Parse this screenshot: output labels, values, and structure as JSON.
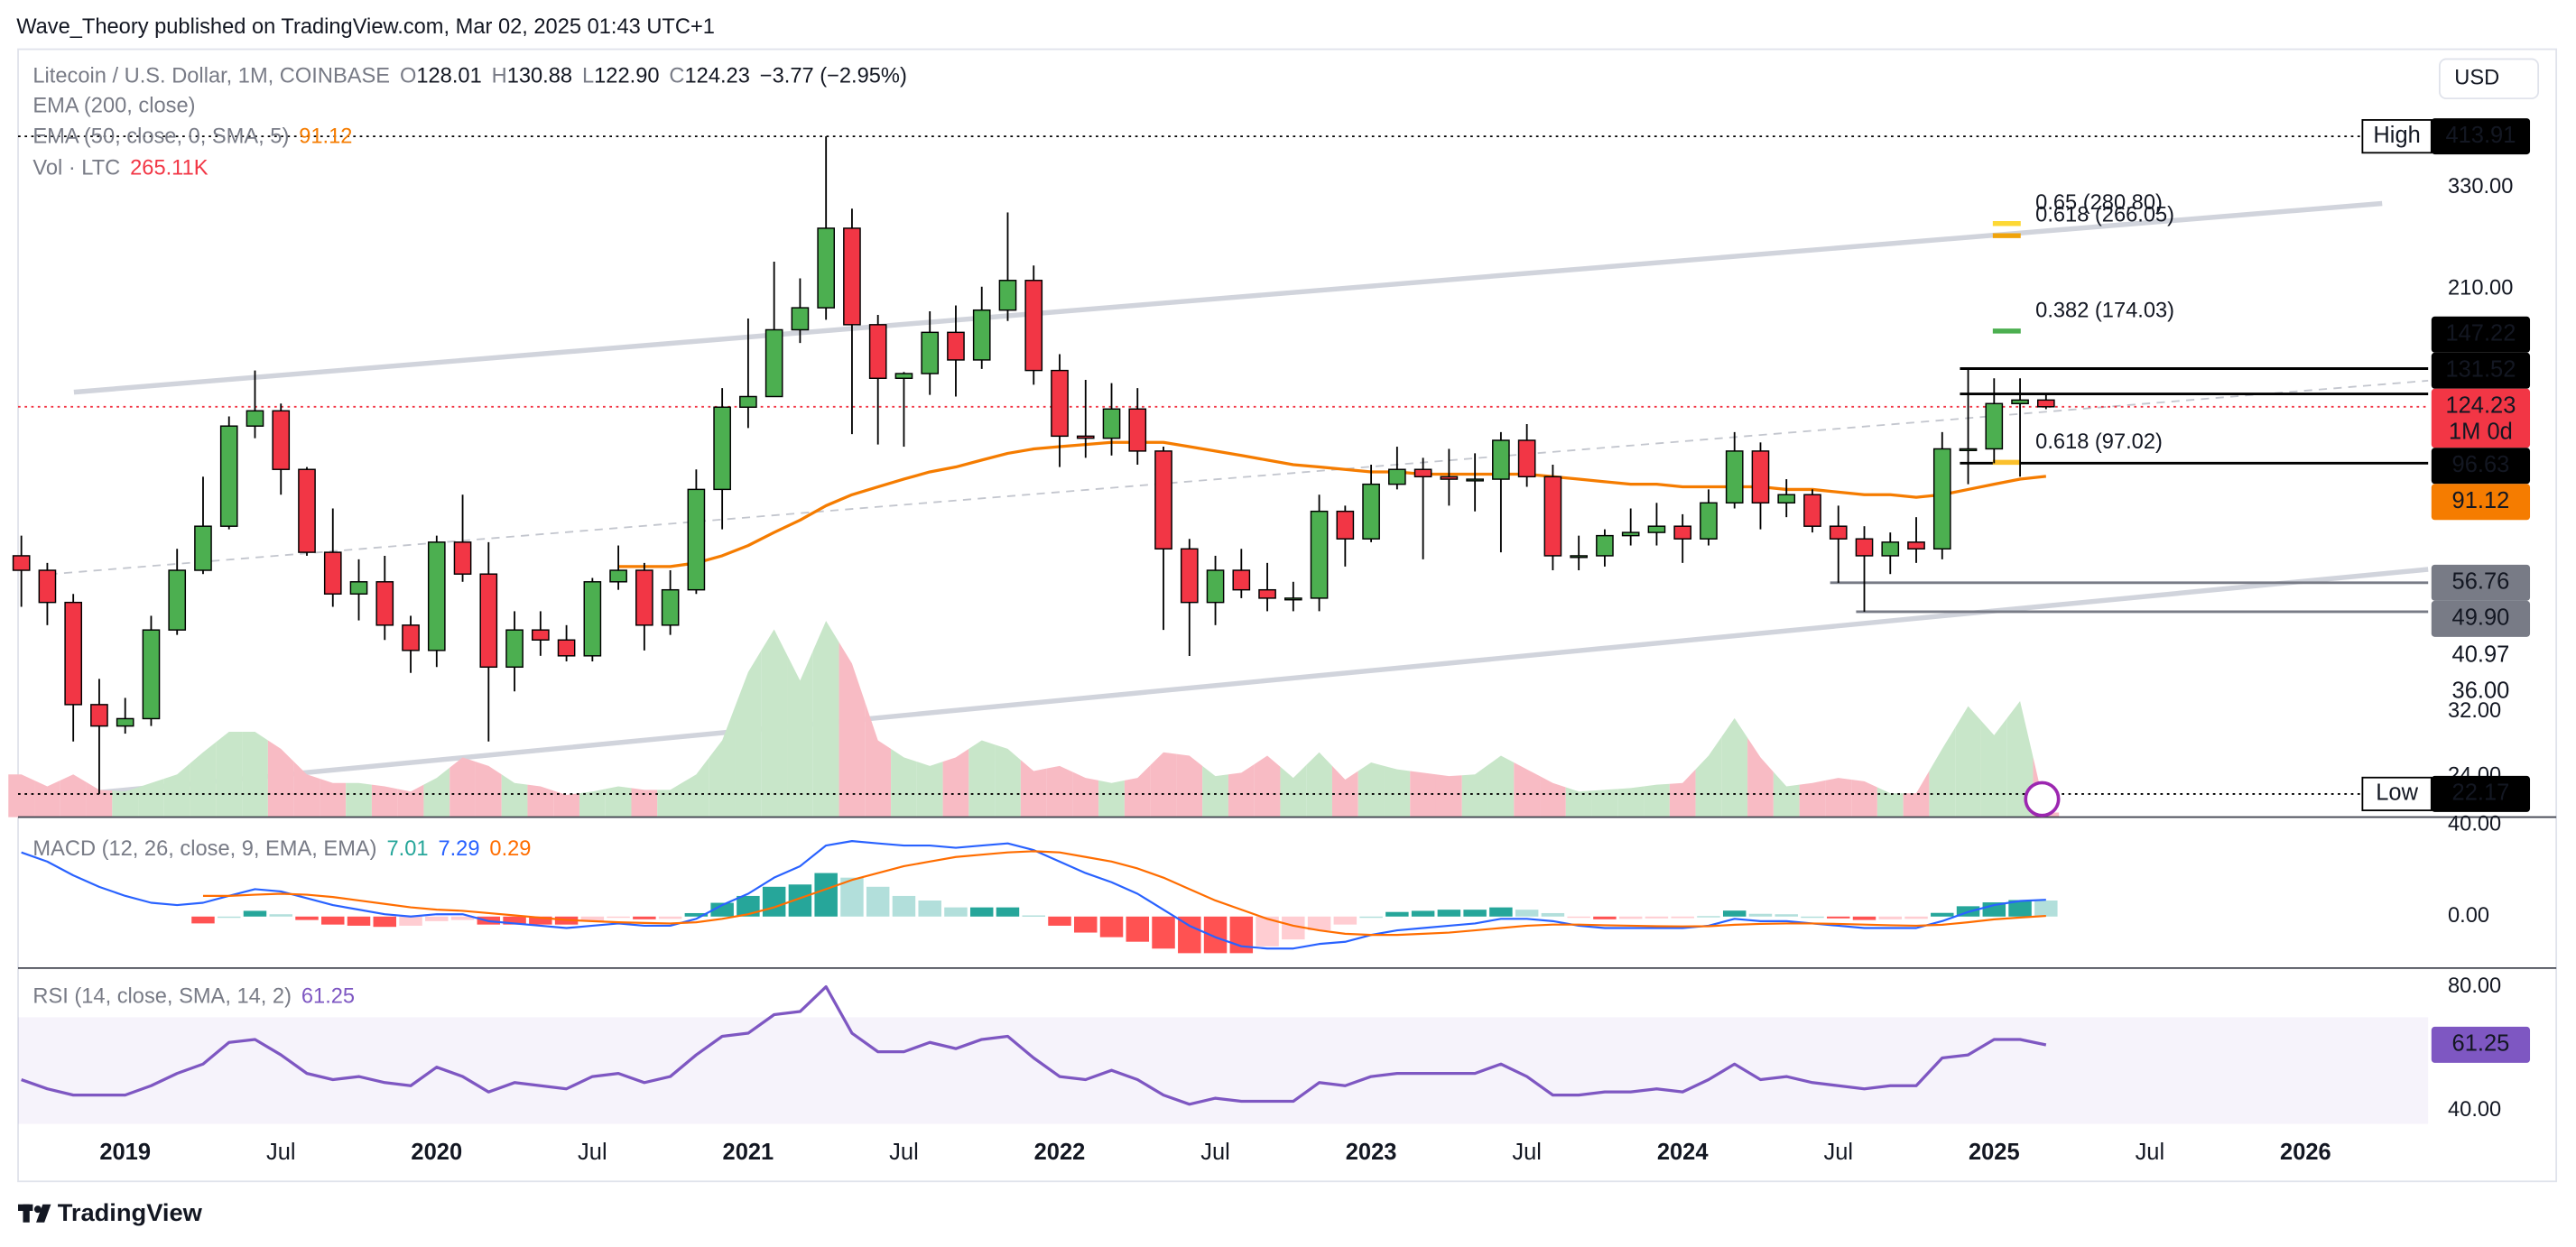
{
  "header": {
    "published": "Wave_Theory published on TradingView.com, Mar 02, 2025 01:43 UTC+1",
    "currency": "USD",
    "logo": "TradingView"
  },
  "chart_data": {
    "type": "candlestick",
    "title": "Litecoin / U.S. Dollar, 1M, COINBASE",
    "ohlc_legend": [
      {
        "key": "O",
        "value": "128.01"
      },
      {
        "key": "H",
        "value": "130.88"
      },
      {
        "key": "L",
        "value": "122.90"
      },
      {
        "key": "C",
        "value": "124.23"
      }
    ],
    "change": "−3.77 (−2.95%)",
    "indicators": [
      {
        "name": "EMA (200, close)"
      },
      {
        "name": "EMA (50, close, 0, SMA, 5)",
        "value": "91.12",
        "color": "#f57c00"
      },
      {
        "name": "Vol · LTC",
        "value": "265.11K",
        "color": "#f23645"
      }
    ],
    "up_color": "#4caf50",
    "down_color": "#f23645",
    "log": true,
    "ylim": [
      20,
      610
    ],
    "yticks": [
      {
        "value": 330,
        "label": "330.00"
      },
      {
        "value": 210,
        "label": "210.00"
      },
      {
        "value": 32,
        "label": "32.00"
      },
      {
        "value": 24,
        "label": "24.00"
      }
    ],
    "xticks": [
      {
        "value": "2019-01",
        "label": "2019"
      },
      {
        "value": "2019-07",
        "label": "Jul"
      },
      {
        "value": "2020-01",
        "label": "2020"
      },
      {
        "value": "2020-07",
        "label": "Jul"
      },
      {
        "value": "2021-01",
        "label": "2021"
      },
      {
        "value": "2021-07",
        "label": "Jul"
      },
      {
        "value": "2022-01",
        "label": "2022"
      },
      {
        "value": "2022-07",
        "label": "Jul"
      },
      {
        "value": "2023-01",
        "label": "2023"
      },
      {
        "value": "2023-07",
        "label": "Jul"
      },
      {
        "value": "2024-01",
        "label": "2024"
      },
      {
        "value": "2024-07",
        "label": "Jul"
      },
      {
        "value": "2025-01",
        "label": "2025"
      },
      {
        "value": "2025-07",
        "label": "Jul"
      },
      {
        "value": "2026-01",
        "label": "2026"
      }
    ],
    "x": [
      "2018-09",
      "2018-10",
      "2018-11",
      "2018-12",
      "2019-01",
      "2019-02",
      "2019-03",
      "2019-04",
      "2019-05",
      "2019-06",
      "2019-07",
      "2019-08",
      "2019-09",
      "2019-10",
      "2019-11",
      "2019-12",
      "2020-01",
      "2020-02",
      "2020-03",
      "2020-04",
      "2020-05",
      "2020-06",
      "2020-07",
      "2020-08",
      "2020-09",
      "2020-10",
      "2020-11",
      "2020-12",
      "2021-01",
      "2021-02",
      "2021-03",
      "2021-04",
      "2021-05",
      "2021-06",
      "2021-07",
      "2021-08",
      "2021-09",
      "2021-10",
      "2021-11",
      "2021-12",
      "2022-01",
      "2022-02",
      "2022-03",
      "2022-04",
      "2022-05",
      "2022-06",
      "2022-07",
      "2022-08",
      "2022-09",
      "2022-10",
      "2022-11",
      "2022-12",
      "2023-01",
      "2023-02",
      "2023-03",
      "2023-04",
      "2023-05",
      "2023-06",
      "2023-07",
      "2023-08",
      "2023-09",
      "2023-10",
      "2023-11",
      "2023-12",
      "2024-01",
      "2024-02",
      "2024-03",
      "2024-04",
      "2024-05",
      "2024-06",
      "2024-07",
      "2024-08",
      "2024-09",
      "2024-10",
      "2024-11",
      "2024-12",
      "2025-01",
      "2025-02",
      "2025-03"
    ],
    "open": [
      64,
      60,
      52,
      33,
      30,
      31,
      46,
      60,
      73,
      114,
      122,
      94,
      65,
      54,
      57,
      47,
      42,
      68,
      59,
      39,
      46,
      44,
      41,
      57,
      60,
      47,
      55,
      86,
      124,
      130,
      175,
      193,
      275,
      179,
      141,
      144,
      173,
      153,
      191,
      218,
      146,
      109,
      108,
      123,
      102,
      66,
      52,
      60,
      55,
      53,
      53,
      78,
      69,
      88,
      94,
      91,
      90,
      90,
      107,
      91,
      64,
      64,
      70,
      71,
      73,
      69,
      81,
      102,
      81,
      84,
      73,
      69,
      64,
      68,
      66,
      103,
      103,
      126,
      128.01
    ],
    "high": [
      70,
      62,
      54,
      37,
      34,
      49,
      66,
      91,
      119,
      146,
      126,
      95,
      79,
      63,
      64,
      49,
      70,
      84,
      68,
      50,
      50,
      47,
      58,
      67,
      62,
      60,
      94,
      135,
      184,
      237,
      220,
      413.91,
      300,
      187,
      145,
      190,
      195,
      212,
      295,
      233,
      157,
      140,
      138,
      135,
      104,
      69,
      64,
      66,
      62,
      57,
      84,
      80,
      96,
      104,
      99,
      103,
      101,
      111,
      115,
      96,
      70,
      72,
      79,
      81,
      77,
      86,
      111,
      106,
      90,
      86,
      80,
      73,
      71,
      76,
      111,
      147.22,
      141,
      141,
      130.88
    ],
    "low": [
      51,
      47,
      28,
      22.17,
      29,
      30,
      45,
      59,
      72,
      108,
      84,
      64,
      51,
      48,
      44,
      38,
      39,
      57,
      28,
      35,
      41,
      40,
      40,
      55,
      42,
      45,
      54,
      72,
      113,
      130,
      165,
      183,
      110,
      105,
      104,
      131,
      130,
      147,
      182,
      137,
      95,
      99,
      100,
      96,
      46,
      40.97,
      47,
      53,
      50,
      50,
      50,
      61,
      68,
      86,
      63,
      80,
      78,
      65,
      87,
      60,
      60,
      61,
      67,
      67,
      62,
      67,
      79,
      72,
      76,
      71,
      56.76,
      49.9,
      59,
      62,
      63,
      88,
      96.63,
      91,
      122.9
    ],
    "close": [
      60,
      52,
      33,
      30,
      31,
      46,
      60,
      73,
      114,
      122,
      94,
      65,
      54,
      57,
      47,
      42,
      68,
      59,
      39,
      46,
      44,
      41,
      57,
      60,
      47,
      55,
      86,
      124,
      130,
      175,
      193,
      275,
      179,
      141,
      144,
      173,
      153,
      191,
      218,
      146,
      109,
      108,
      123,
      102,
      66,
      52,
      60,
      55,
      53,
      53,
      78,
      69,
      88,
      94,
      91,
      90,
      90,
      107,
      91,
      64,
      64,
      70,
      71,
      73,
      69,
      81,
      102,
      81,
      84,
      73,
      69,
      64,
      68,
      66,
      103,
      103,
      126,
      128.01,
      124.23
    ],
    "ema50": {
      "color": "#f57c00",
      "values": [
        null,
        null,
        null,
        null,
        null,
        null,
        null,
        null,
        null,
        null,
        null,
        null,
        null,
        null,
        null,
        null,
        null,
        null,
        null,
        null,
        null,
        null,
        null,
        61,
        61,
        61,
        62,
        64,
        67,
        71,
        75,
        80,
        84,
        87,
        90,
        93,
        95,
        98,
        101,
        103,
        104,
        105,
        106,
        106,
        106,
        104,
        102,
        100,
        98,
        96,
        95,
        94,
        93,
        93,
        92,
        92,
        92,
        92,
        92,
        91,
        90,
        89,
        88,
        88,
        87,
        87,
        87,
        87,
        86,
        86,
        85,
        84,
        84,
        83,
        84,
        86,
        88,
        90,
        91.12
      ]
    },
    "volume": {
      "ylim": [
        0,
        45000000
      ],
      "values": [
        2500000,
        1800000,
        2500000,
        1600000,
        1500000,
        2000000,
        2500000,
        3800000,
        5000000,
        5000000,
        4000000,
        2500000,
        2000000,
        2000000,
        1800000,
        1500000,
        2300000,
        3500000,
        3000000,
        2000000,
        1800000,
        1300000,
        1500000,
        1800000,
        1600000,
        1600000,
        2500000,
        4500000,
        8500000,
        11000000,
        8000000,
        11500000,
        9000000,
        4500000,
        3500000,
        3000000,
        3500000,
        4500000,
        4000000,
        2700000,
        3000000,
        2300000,
        2000000,
        2300000,
        3800000,
        3600000,
        2400000,
        2600000,
        3600000,
        2300000,
        3800000,
        2200000,
        3200000,
        2800000,
        2600000,
        2400000,
        2500000,
        3600000,
        2800000,
        2000000,
        1500000,
        1600000,
        1700000,
        1900000,
        2000000,
        3600000,
        5800000,
        3500000,
        1800000,
        2000000,
        2300000,
        2100000,
        1400000,
        1400000,
        4000000,
        6500000,
        4800000,
        6800000,
        265110
      ]
    },
    "badges": [
      {
        "value": 413.91,
        "label": "413.91",
        "tag": "High",
        "color": "#000000"
      },
      {
        "value": 147.22,
        "label": "147.22",
        "color": "#000000",
        "from": "2024-12"
      },
      {
        "value": 131.52,
        "label": "131.52",
        "color": "#000000",
        "from": "2024-12"
      },
      {
        "value": 124.23,
        "label": "124.23",
        "sub": "1M 0d",
        "color": "#f23645"
      },
      {
        "value": 96.63,
        "label": "96.63",
        "color": "#000000",
        "from": "2024-12"
      },
      {
        "value": 91.12,
        "label": "91.12",
        "color": "#f57c00"
      },
      {
        "value": 56.76,
        "label": "56.76",
        "color": "#787b86",
        "from": "2024-07"
      },
      {
        "value": 49.9,
        "label": "49.90",
        "color": "#787b86",
        "from": "2024-08"
      },
      {
        "value": 40.97,
        "label": "40.97"
      },
      {
        "value": 36,
        "label": "36.00"
      },
      {
        "value": 22.17,
        "label": "22.17",
        "tag": "Low",
        "color": "#000000"
      }
    ],
    "fibs": [
      {
        "value": 280.8,
        "label": "0.65 (280.80)",
        "color": "#fdd835"
      },
      {
        "value": 266.05,
        "label": "0.618 (266.05)",
        "color": "#f0a30a"
      },
      {
        "value": 174.03,
        "label": "0.382 (174.03)",
        "color": "#4caf50"
      },
      {
        "value": 97.02,
        "label": "0.618 (97.02)",
        "color": "#fbc02d"
      }
    ],
    "macd": {
      "title": "MACD (12, 26, close, 9, EMA, EMA)",
      "legend": [
        {
          "value": "7.01",
          "color": "#26a69a"
        },
        {
          "value": "7.29",
          "color": "#2962ff"
        },
        {
          "value": "0.29",
          "color": "#ff6d00"
        }
      ],
      "ylim": [
        -22.5,
        42
      ],
      "yticks": [
        {
          "value": 40,
          "label": "40.00"
        },
        {
          "value": 0,
          "label": "0.00"
        }
      ],
      "macd_color": "#2962ff",
      "signal_color": "#ff6d00",
      "macd": [
        28,
        24,
        18,
        13,
        9,
        6,
        5,
        6,
        9,
        12,
        11,
        8,
        5,
        3,
        1,
        0,
        1,
        1,
        -2,
        -3,
        -4,
        -5,
        -4,
        -3,
        -4,
        -4,
        -1,
        5,
        10,
        17,
        22,
        31,
        33,
        32,
        31,
        31,
        30,
        31,
        32,
        29,
        24,
        19,
        15,
        10,
        3,
        -4,
        -9,
        -13,
        -14,
        -14,
        -12,
        -11,
        -8,
        -6,
        -5,
        -4,
        -3,
        -1,
        -1,
        -2,
        -4,
        -5,
        -5,
        -5,
        -5,
        -4,
        -1,
        -2,
        -2,
        -3,
        -4,
        -5,
        -5,
        -5,
        -2,
        2,
        5,
        6.8,
        7.29
      ],
      "signal": [
        null,
        null,
        null,
        null,
        null,
        null,
        null,
        9,
        9,
        9.5,
        10,
        9.5,
        8.5,
        7,
        5.5,
        4,
        3,
        2.5,
        1.5,
        0.5,
        -0.5,
        -1.5,
        -2,
        -2.5,
        -2.8,
        -3,
        -2.5,
        -1,
        1,
        4,
        8,
        12,
        16,
        19,
        22,
        24,
        26,
        27,
        28,
        28.5,
        28,
        26,
        24,
        21,
        17,
        12,
        7,
        3,
        -1,
        -4,
        -6,
        -7.5,
        -8,
        -8,
        -7.5,
        -7,
        -6,
        -5,
        -4,
        -3.5,
        -3.5,
        -3.8,
        -4,
        -4.2,
        -4.3,
        -4.2,
        -3.6,
        -3.2,
        -3,
        -3,
        -3.2,
        -3.5,
        -3.8,
        -4,
        -3.6,
        -2.5,
        -1.2,
        -0.4,
        0.29
      ],
      "hist": [
        null,
        null,
        null,
        null,
        null,
        null,
        null,
        -3,
        0,
        2.5,
        1,
        -1.5,
        -3.5,
        -4,
        -4.5,
        -4,
        -2,
        -1.5,
        -3.5,
        -3.5,
        -3.5,
        -3.5,
        -2,
        -0.5,
        -1.2,
        -1,
        1.5,
        6,
        9,
        13,
        14,
        19,
        17,
        13,
        9,
        7,
        4,
        4,
        4,
        0.5,
        -4,
        -7,
        -9,
        -11,
        -14,
        -16,
        -16,
        -16,
        -13,
        -10,
        -6,
        -3.5,
        0,
        2,
        2.5,
        3,
        3,
        4,
        3,
        1.5,
        -0.5,
        -1.2,
        -1,
        -0.8,
        -0.7,
        0.2,
        2.6,
        1.2,
        1,
        0,
        -0.8,
        -1.5,
        -1.2,
        -1,
        1.6,
        4.5,
        6.2,
        7.2,
        7.01
      ]
    },
    "rsi": {
      "title": "RSI (14, close, SMA, 14, 2)",
      "legend": "61.25",
      "color": "#7e57c2",
      "ylim": [
        33,
        85
      ],
      "yticks": [
        {
          "value": 80,
          "label": "80.00"
        },
        {
          "value": 40,
          "label": "40.00"
        }
      ],
      "values": [
        50,
        47,
        45,
        45,
        45,
        48,
        52,
        55,
        62,
        63,
        58,
        52,
        50,
        51,
        49,
        48,
        54,
        51,
        46,
        49,
        48,
        47,
        51,
        52,
        49,
        51,
        58,
        64,
        65,
        71,
        72,
        80,
        65,
        59,
        59,
        62,
        60,
        63,
        64,
        57,
        51,
        50,
        53,
        50,
        45,
        42,
        44,
        43,
        43,
        43,
        49,
        48,
        51,
        52,
        52,
        52,
        52,
        55,
        51,
        45,
        45,
        46,
        46,
        47,
        46,
        50,
        55,
        50,
        51,
        49,
        48,
        47,
        48,
        48,
        57,
        58,
        63,
        63,
        61.25
      ]
    }
  }
}
